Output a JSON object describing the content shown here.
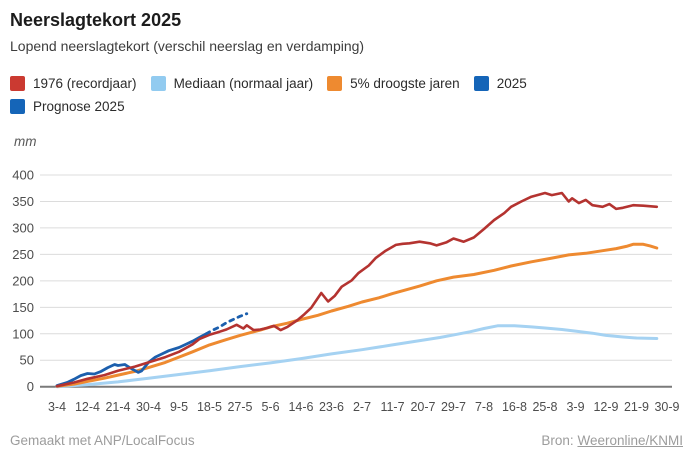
{
  "header": {
    "title": "Neerslagtekort 2025",
    "subtitle": "Lopend neerslagtekort (verschil neerslag en verdamping)"
  },
  "legend": {
    "items": [
      {
        "label": "1976 (recordjaar)",
        "color": "#cb3a31"
      },
      {
        "label": "Mediaan (normaal jaar)",
        "color": "#92cbf0"
      },
      {
        "label": "5% droogste jaren",
        "color": "#ee8a30"
      },
      {
        "label": "2025",
        "color": "#1565b8"
      },
      {
        "label": "Prognose 2025",
        "color": "#1565b8"
      }
    ]
  },
  "footer": {
    "credit": "Gemaakt met ANP/LocalFocus",
    "source_label": "Bron:",
    "source_link": "Weeronline/KNMI"
  },
  "chart_data": {
    "type": "line",
    "title": "Neerslagtekort 2025",
    "subtitle": "Lopend neerslagtekort (verschil neerslag en verdamping)",
    "unit_label": "mm",
    "ylim": [
      0,
      400
    ],
    "y_ticks": [
      0,
      50,
      100,
      150,
      200,
      250,
      300,
      350,
      400
    ],
    "grid": true,
    "legend_position": "top",
    "x_tick_labels": [
      "3-4",
      "12-4",
      "21-4",
      "30-4",
      "9-5",
      "18-5",
      "27-5",
      "5-6",
      "14-6",
      "23-6",
      "2-7",
      "11-7",
      "20-7",
      "29-7",
      "7-8",
      "16-8",
      "25-8",
      "3-9",
      "12-9",
      "21-9",
      "30-9"
    ],
    "x_tick_days": [
      0,
      9,
      18,
      27,
      36,
      45,
      54,
      63,
      72,
      81,
      90,
      99,
      108,
      117,
      126,
      135,
      144,
      153,
      162,
      171,
      180
    ],
    "x_axis_note": "datums (dag-maand), 3 april t/m 30 september",
    "series": [
      {
        "name": "1976 (recordjaar)",
        "color": "#b43330",
        "style": "solid",
        "width": 2.6,
        "points": [
          [
            0,
            1
          ],
          [
            5,
            8
          ],
          [
            9,
            15
          ],
          [
            14,
            22
          ],
          [
            18,
            30
          ],
          [
            23,
            38
          ],
          [
            27,
            46
          ],
          [
            32,
            56
          ],
          [
            36,
            66
          ],
          [
            40,
            80
          ],
          [
            42,
            90
          ],
          [
            45,
            98
          ],
          [
            48,
            104
          ],
          [
            50,
            108
          ],
          [
            53,
            117
          ],
          [
            55,
            110
          ],
          [
            56,
            116
          ],
          [
            58,
            107
          ],
          [
            60,
            108
          ],
          [
            62,
            111
          ],
          [
            64,
            115
          ],
          [
            66,
            107
          ],
          [
            68,
            113
          ],
          [
            71,
            126
          ],
          [
            73,
            137
          ],
          [
            75,
            149
          ],
          [
            78,
            177
          ],
          [
            80,
            161
          ],
          [
            82,
            172
          ],
          [
            84,
            189
          ],
          [
            87,
            201
          ],
          [
            89,
            215
          ],
          [
            92,
            229
          ],
          [
            94,
            243
          ],
          [
            97,
            257
          ],
          [
            100,
            268
          ],
          [
            102,
            270
          ],
          [
            104,
            271
          ],
          [
            107,
            274
          ],
          [
            110,
            271
          ],
          [
            112,
            267
          ],
          [
            115,
            273
          ],
          [
            117,
            280
          ],
          [
            120,
            274
          ],
          [
            123,
            282
          ],
          [
            126,
            298
          ],
          [
            129,
            315
          ],
          [
            132,
            328
          ],
          [
            134,
            340
          ],
          [
            137,
            350
          ],
          [
            140,
            359
          ],
          [
            144,
            366
          ],
          [
            146,
            362
          ],
          [
            149,
            366
          ],
          [
            151,
            350
          ],
          [
            152,
            356
          ],
          [
            154,
            347
          ],
          [
            156,
            353
          ],
          [
            158,
            343
          ],
          [
            161,
            340
          ],
          [
            163,
            345
          ],
          [
            165,
            336
          ],
          [
            167,
            338
          ],
          [
            170,
            343
          ],
          [
            173,
            342
          ],
          [
            177,
            340
          ]
        ]
      },
      {
        "name": "Mediaan (normaal jaar)",
        "color": "#a5d2f2",
        "style": "solid",
        "width": 3,
        "points": [
          [
            0,
            0
          ],
          [
            9,
            4
          ],
          [
            18,
            9
          ],
          [
            27,
            16
          ],
          [
            36,
            23
          ],
          [
            45,
            30
          ],
          [
            54,
            38
          ],
          [
            63,
            45
          ],
          [
            72,
            53
          ],
          [
            81,
            62
          ],
          [
            90,
            70
          ],
          [
            99,
            79
          ],
          [
            108,
            88
          ],
          [
            113,
            93
          ],
          [
            118,
            99
          ],
          [
            122,
            104
          ],
          [
            126,
            110
          ],
          [
            130,
            115
          ],
          [
            135,
            115
          ],
          [
            140,
            113
          ],
          [
            144,
            111
          ],
          [
            149,
            108
          ],
          [
            153,
            105
          ],
          [
            158,
            101
          ],
          [
            162,
            97
          ],
          [
            167,
            94
          ],
          [
            171,
            92
          ],
          [
            177,
            91
          ]
        ]
      },
      {
        "name": "5% droogste jaren",
        "color": "#ee8a30",
        "style": "solid",
        "width": 3,
        "points": [
          [
            0,
            1
          ],
          [
            5,
            5
          ],
          [
            9,
            10
          ],
          [
            14,
            16
          ],
          [
            18,
            22
          ],
          [
            23,
            29
          ],
          [
            27,
            36
          ],
          [
            32,
            46
          ],
          [
            36,
            56
          ],
          [
            40,
            66
          ],
          [
            45,
            79
          ],
          [
            50,
            89
          ],
          [
            54,
            97
          ],
          [
            57,
            102
          ],
          [
            60,
            107
          ],
          [
            63,
            113
          ],
          [
            68,
            120
          ],
          [
            72,
            127
          ],
          [
            77,
            135
          ],
          [
            81,
            143
          ],
          [
            86,
            152
          ],
          [
            90,
            160
          ],
          [
            95,
            168
          ],
          [
            99,
            176
          ],
          [
            103,
            183
          ],
          [
            107,
            190
          ],
          [
            112,
            200
          ],
          [
            117,
            207
          ],
          [
            123,
            212
          ],
          [
            129,
            220
          ],
          [
            134,
            228
          ],
          [
            140,
            236
          ],
          [
            146,
            243
          ],
          [
            151,
            249
          ],
          [
            156,
            252
          ],
          [
            161,
            257
          ],
          [
            165,
            261
          ],
          [
            168,
            265
          ],
          [
            170,
            269
          ],
          [
            173,
            269
          ],
          [
            175,
            266
          ],
          [
            177,
            262
          ]
        ]
      },
      {
        "name": "2025",
        "color": "#1c5fad",
        "style": "solid",
        "width": 2.8,
        "points": [
          [
            0,
            2
          ],
          [
            3,
            8
          ],
          [
            5,
            14
          ],
          [
            7,
            21
          ],
          [
            9,
            25
          ],
          [
            11,
            24
          ],
          [
            13,
            29
          ],
          [
            15,
            36
          ],
          [
            17,
            42
          ],
          [
            18,
            40
          ],
          [
            20,
            42
          ],
          [
            22,
            34
          ],
          [
            24,
            27
          ],
          [
            25,
            30
          ],
          [
            27,
            46
          ],
          [
            29,
            56
          ],
          [
            31,
            62
          ],
          [
            33,
            68
          ],
          [
            36,
            74
          ],
          [
            38,
            80
          ],
          [
            40,
            86
          ],
          [
            42,
            93
          ],
          [
            44,
            100
          ]
        ]
      },
      {
        "name": "Prognose 2025",
        "color": "#1c5fad",
        "style": "dashed",
        "width": 2.8,
        "points": [
          [
            44,
            100
          ],
          [
            46,
            107
          ],
          [
            48,
            113
          ],
          [
            50,
            121
          ],
          [
            52,
            127
          ],
          [
            54,
            133
          ],
          [
            56,
            138
          ]
        ]
      }
    ]
  }
}
